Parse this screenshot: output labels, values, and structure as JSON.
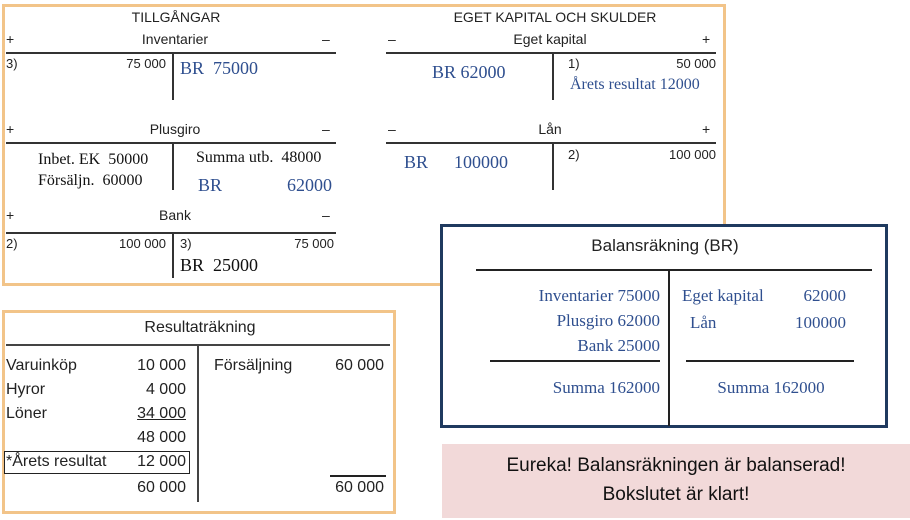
{
  "assets": {
    "heading": "TILLGÅNGAR",
    "inventarier": {
      "plus": "+",
      "title": "Inventarier",
      "minus": "–",
      "left_ref": "3)",
      "left_amount": "75 000",
      "right_note": "BR  75000"
    },
    "plusgiro": {
      "plus": "+",
      "title": "Plusgiro",
      "minus": "–",
      "left_note1": "Inbet. EK  50000",
      "left_note2": "Försäljn.  60000",
      "right_note1": "Summa utb.  48000",
      "right_note2_label": "BR",
      "right_note2_amount": "62000"
    },
    "bank": {
      "plus": "+",
      "title": "Bank",
      "minus": "–",
      "left_ref": "2)",
      "left_amount": "100 000",
      "right_ref": "3)",
      "right_amount": "75 000",
      "right_note": "BR  25000"
    }
  },
  "liabilities": {
    "heading": "EGET KAPITAL OCH SKULDER",
    "eget_kapital": {
      "minus": "–",
      "title": "Eget kapital",
      "plus": "+",
      "left_note": "BR 62000",
      "right_ref": "1)",
      "right_amount": "50 000",
      "right_note": "Årets resultat 12000"
    },
    "lan": {
      "minus": "–",
      "title": "Lån",
      "plus": "+",
      "left_note_label": "BR",
      "left_note_amount": "100000",
      "right_ref": "2)",
      "right_amount": "100 000"
    }
  },
  "income_statement": {
    "title": "Resultaträkning",
    "rows": [
      {
        "label": "Varuinköp",
        "amount": "10 000"
      },
      {
        "label": "Hyror",
        "amount": "4 000"
      },
      {
        "label": "Löner",
        "amount": "34 000"
      }
    ],
    "subtotal": "48 000",
    "result_label": "*Årets resultat",
    "result_amount": "12 000",
    "total_left": "60 000",
    "credit_label": "Försäljning",
    "credit_amount": "60 000",
    "total_right": "60 000"
  },
  "balance_sheet": {
    "title": "Balansräkning (BR)",
    "assets": [
      "Inventarier 75000",
      "Plusgiro 62000",
      "Bank 25000"
    ],
    "assets_total": "Summa 162000",
    "liabilities": [
      {
        "label": "Eget kapital",
        "amount": "62000"
      },
      {
        "label": "Lån",
        "amount": "100000"
      }
    ],
    "liabilities_total": "Summa 162000"
  },
  "banner": {
    "line1": "Eureka! Balansräkningen är balanserad!",
    "line2": "Bokslutet är klart!"
  },
  "colors": {
    "panel_border": "#f2c489",
    "bs_border": "#1f3a5f",
    "handwriting": "#2f4f8f",
    "banner_bg": "#f2d9d9"
  }
}
